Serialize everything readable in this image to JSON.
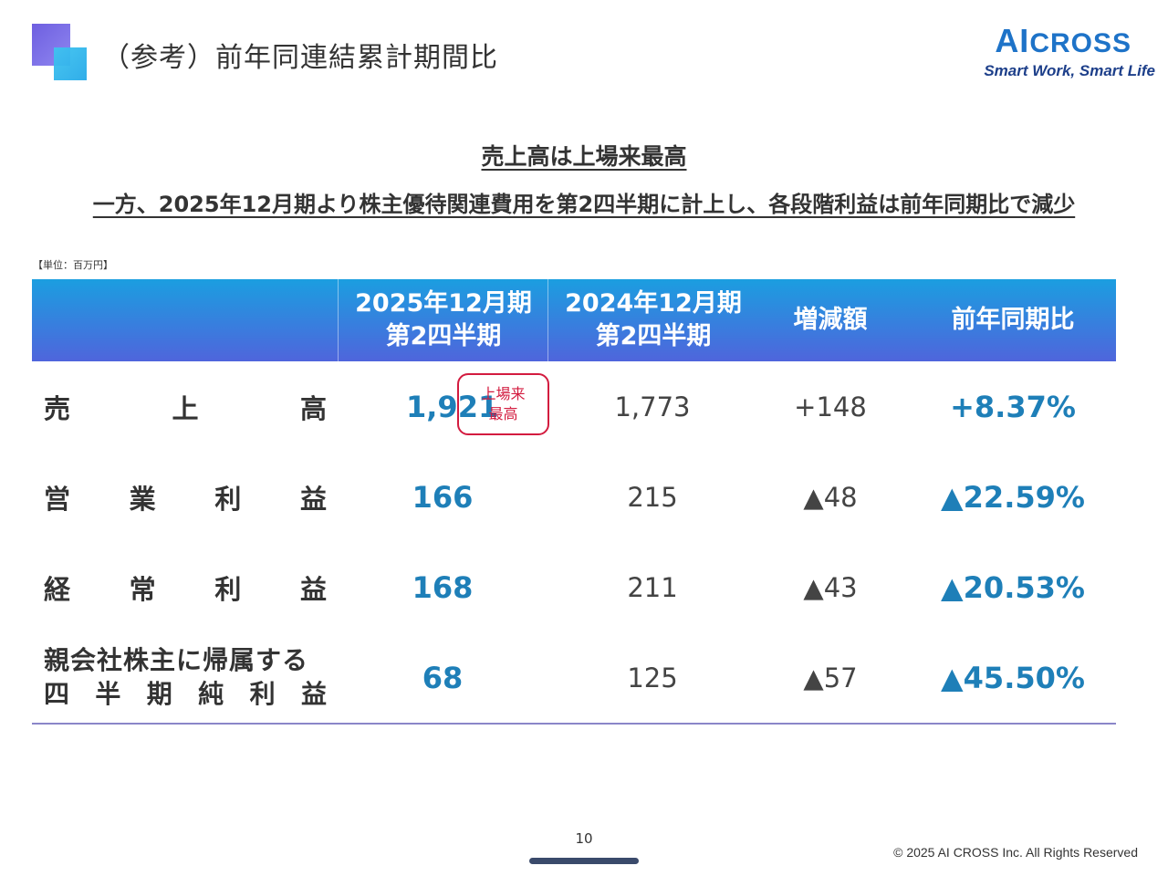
{
  "header": {
    "title": "（参考）前年同連結累計期間比",
    "logo": {
      "main_large": "AI",
      "main_rest": "CROSS",
      "tagline": "Smart Work, Smart Life"
    }
  },
  "headlines": {
    "line1": "売上高は上場来最高",
    "line2": "一方、2025年12月期より株主優待関連費用を第2四半期に計上し、各段階利益は前年同期比で減少"
  },
  "unit_note": "【単位：百万円】",
  "table": {
    "columns": [
      "",
      "2025年12月期\n第2四半期",
      "2024年12月期\n第2四半期",
      "増減額",
      "前年同期比"
    ],
    "rows": [
      {
        "label_chars": [
          "売",
          "上",
          "高"
        ],
        "current": "1,921",
        "previous": "1,773",
        "change": "+148",
        "ratio": "+8.37%"
      },
      {
        "label_chars": [
          "営",
          "業",
          "利",
          "益"
        ],
        "current": "166",
        "previous": "215",
        "change": "▲48",
        "ratio": "▲22.59%"
      },
      {
        "label_chars": [
          "経",
          "常",
          "利",
          "益"
        ],
        "current": "168",
        "previous": "211",
        "change": "▲43",
        "ratio": "▲20.53%"
      },
      {
        "label_line1": "親会社株主に帰属する",
        "label_line2_chars": [
          "四",
          "半",
          "期",
          "純",
          "利",
          "益"
        ],
        "current": "68",
        "previous": "125",
        "change": "▲57",
        "ratio": "▲45.50%"
      }
    ],
    "badge": {
      "line1": "上場来",
      "line2": "最高"
    }
  },
  "footer": {
    "page_number": "10",
    "copyright": "© 2025 AI CROSS Inc. All Rights Reserved"
  },
  "colors": {
    "accent_blue": "#1e7fb8",
    "header_gradient_top": "#1b9ee0",
    "header_gradient_bottom": "#4f65dc",
    "badge_red": "#d31b3f"
  }
}
